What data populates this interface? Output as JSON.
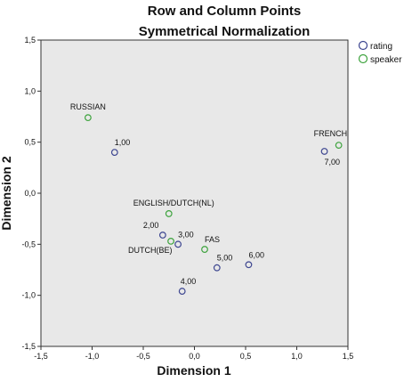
{
  "chart_data": {
    "type": "scatter",
    "title": "Row and Column Points",
    "subtitle": "Symmetrical Normalization",
    "xlabel": "Dimension 1",
    "ylabel": "Dimension 2",
    "xlim": [
      -1.5,
      1.5
    ],
    "ylim": [
      -1.5,
      1.5
    ],
    "xticks": [
      -1.5,
      -1.0,
      -0.5,
      0.0,
      0.5,
      1.0,
      1.5
    ],
    "yticks": [
      -1.5,
      -1.0,
      -0.5,
      0.0,
      0.5,
      1.0,
      1.5
    ],
    "xtick_labels": [
      "-1,5",
      "-1,0",
      "-0,5",
      "0,0",
      "0,5",
      "1,0",
      "1,5"
    ],
    "ytick_labels": [
      "-1,5",
      "-1,0",
      "-0,5",
      "0,0",
      "0,5",
      "1,0",
      "1,5"
    ],
    "grid": false,
    "background": "#e8e8e8",
    "legend_position": "top-right",
    "series": [
      {
        "name": "rating",
        "color": "#3d4690",
        "points": [
          {
            "label": "1,00",
            "x": -0.78,
            "y": 0.4
          },
          {
            "label": "2,00",
            "x": -0.31,
            "y": -0.41
          },
          {
            "label": "3,00",
            "x": -0.16,
            "y": -0.5
          },
          {
            "label": "4,00",
            "x": -0.12,
            "y": -0.96
          },
          {
            "label": "5,00",
            "x": 0.22,
            "y": -0.73
          },
          {
            "label": "6,00",
            "x": 0.53,
            "y": -0.7
          },
          {
            "label": "7,00",
            "x": 1.27,
            "y": 0.41
          }
        ]
      },
      {
        "name": "speaker",
        "color": "#3ea33e",
        "points": [
          {
            "label": "RUSSIAN",
            "x": -1.04,
            "y": 0.74
          },
          {
            "label": "ENGLISH/DUTCH(NL)",
            "x": -0.25,
            "y": -0.2
          },
          {
            "label": "DUTCH(BE)",
            "x": -0.23,
            "y": -0.47
          },
          {
            "label": "FAS",
            "x": 0.1,
            "y": -0.55
          },
          {
            "label": "FRENCH",
            "x": 1.41,
            "y": 0.47
          }
        ]
      }
    ]
  }
}
